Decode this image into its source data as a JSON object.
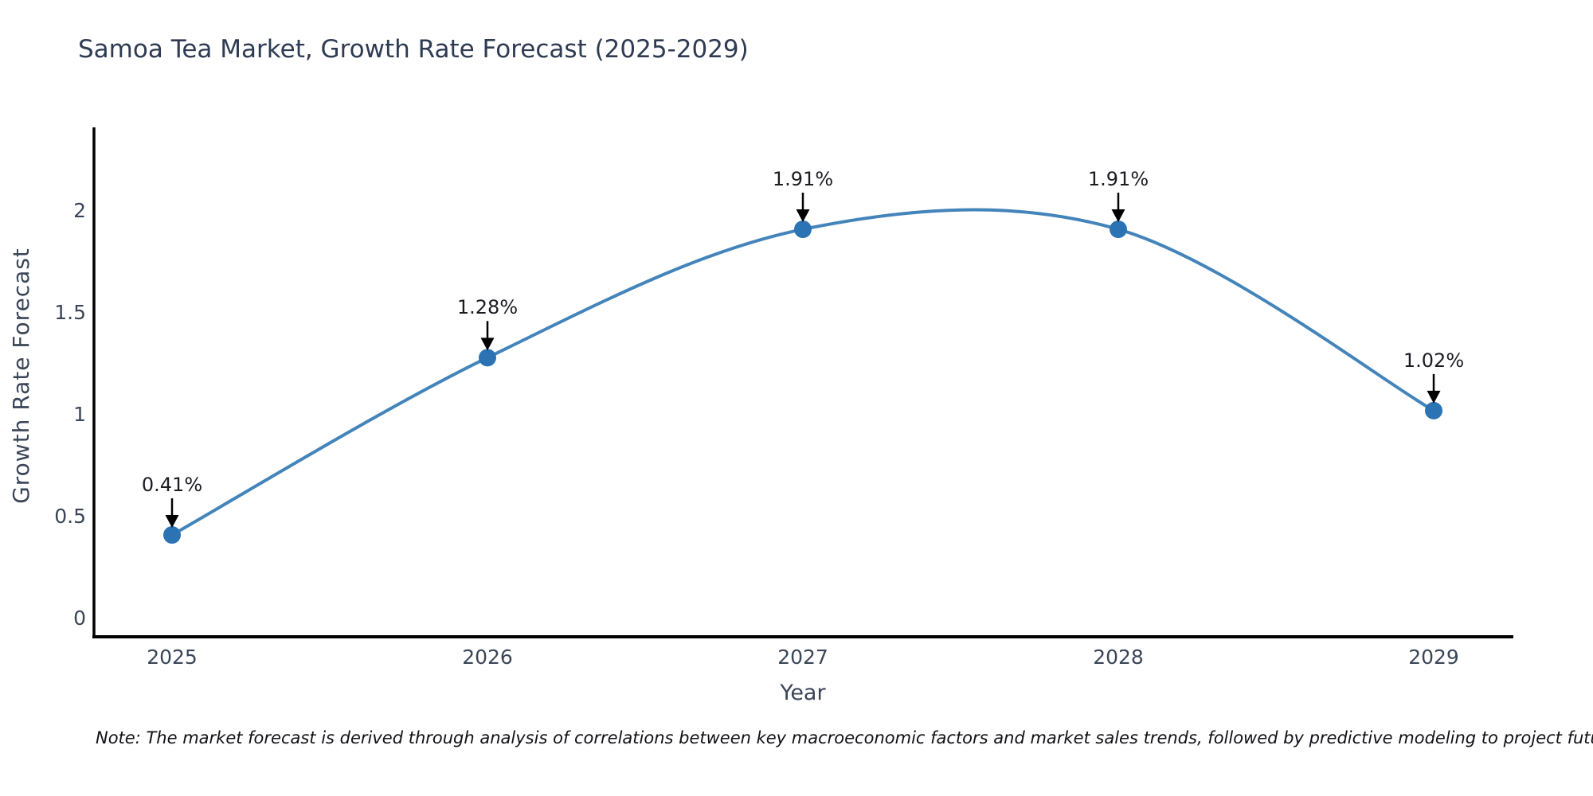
{
  "chart_data": {
    "type": "line",
    "title": "Samoa Tea Market, Growth Rate Forecast (2025-2029)",
    "xlabel": "Year",
    "ylabel": "Growth Rate Forecast",
    "categories": [
      "2025",
      "2026",
      "2027",
      "2028",
      "2029"
    ],
    "series": [
      {
        "name": "Growth Rate Forecast",
        "values": [
          0.41,
          1.28,
          1.91,
          1.91,
          1.02
        ]
      }
    ],
    "point_labels": [
      "0.41%",
      "1.28%",
      "1.91%",
      "1.91%",
      "1.02%"
    ],
    "ytick_labels": [
      "0",
      "0.5",
      "1",
      "1.5",
      "2"
    ],
    "ytick_values": [
      0,
      0.5,
      1,
      1.5,
      2
    ],
    "ylim": [
      -0.09,
      2.41
    ],
    "grid": false,
    "legend_position": "none",
    "curve": "smooth-spline",
    "marker_annotation_style": "value-above-with-down-arrow",
    "colors": {
      "line": "#4384ba",
      "marker": "#2c73b4",
      "arrow": "#000000",
      "axis": "#000000",
      "title_text": "#2e3b52",
      "tick_text": "#3a4557"
    }
  },
  "footnote": "Note: The market forecast is derived through analysis of correlations between key macroeconomic factors and market sales trends, followed by predictive modeling to project future sales"
}
